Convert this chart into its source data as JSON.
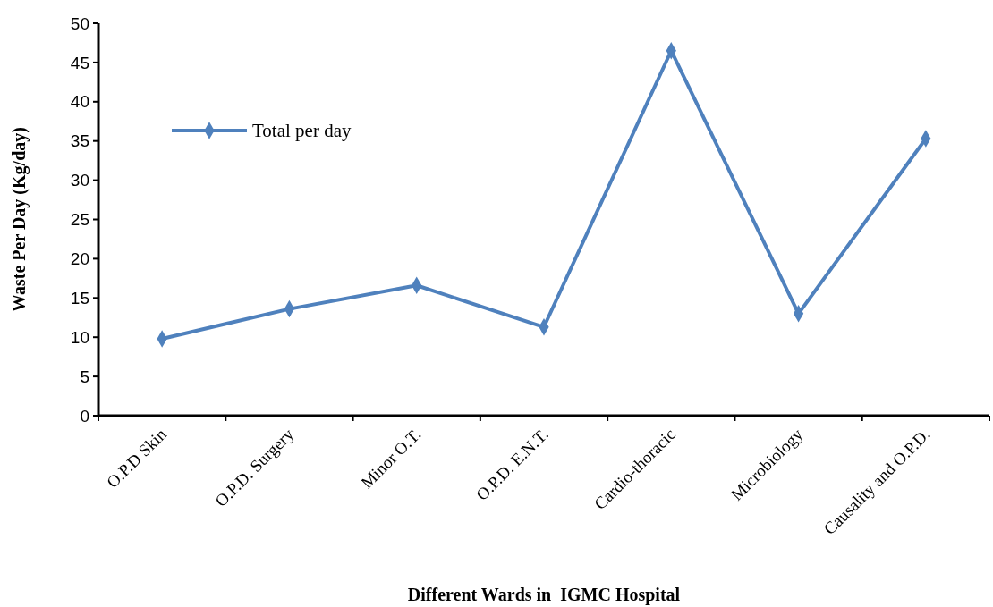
{
  "chart_data": {
    "type": "line",
    "xlabel": "Different Wards in  IGMC Hospital",
    "ylabel": "Waste Per Day (Kg/day)",
    "categories": [
      "O.P.D Skin",
      "O.P.D. Surgery",
      "Minor O.T.",
      "O.P.D.   E.N.T.",
      "Cardio-thoracic",
      "Microbiology",
      "Causality and O.P.D."
    ],
    "series": [
      {
        "name": "Total per day",
        "color": "#4f81bd",
        "values": [
          9.8,
          13.6,
          16.6,
          11.3,
          46.5,
          13.0,
          35.3
        ]
      }
    ],
    "ylim": [
      0,
      50
    ],
    "yticks": [
      0,
      5,
      10,
      15,
      20,
      25,
      30,
      35,
      40,
      45,
      50
    ],
    "grid": false,
    "legend": "top left",
    "marker": "diamond",
    "line_style": "solid"
  }
}
